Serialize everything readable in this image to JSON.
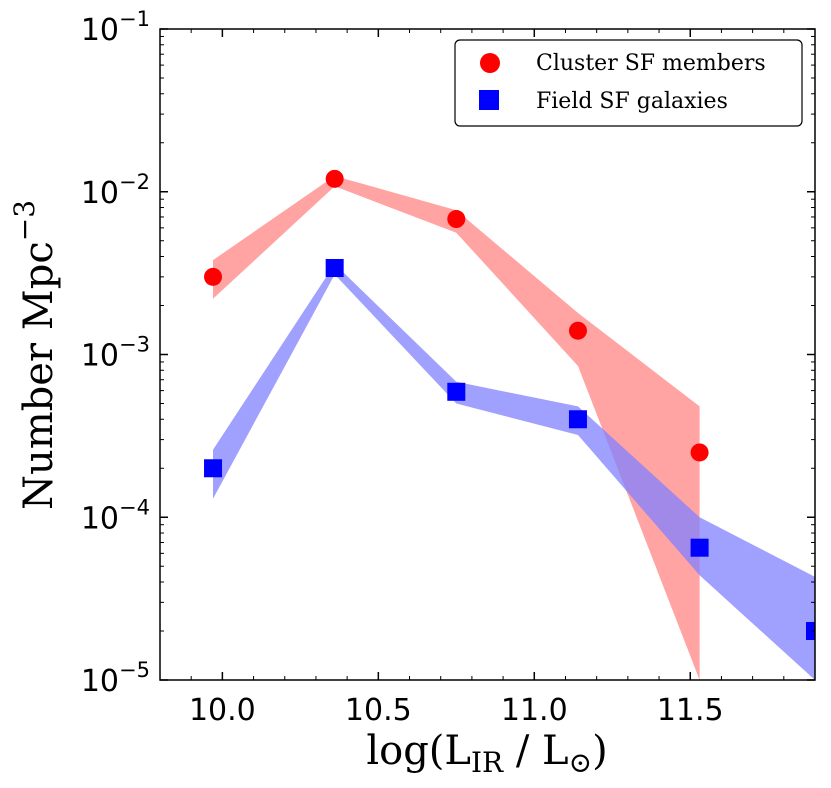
{
  "chart_data": {
    "type": "scatter",
    "title": "",
    "xlabel": "log(L_IR / L_⊙)",
    "ylabel": "Number Mpc^-3",
    "xlim": [
      9.8,
      11.9
    ],
    "ylim": [
      1e-05,
      0.1
    ],
    "yscale": "log",
    "grid": false,
    "legend_position": "top-right",
    "x_ticks": [
      10.0,
      10.5,
      11.0,
      11.5
    ],
    "x_tick_labels": [
      "10.0",
      "10.5",
      "11.0",
      "11.5"
    ],
    "y_ticks": [
      1e-05,
      0.0001,
      0.001,
      0.01,
      0.1
    ],
    "y_tick_labels": [
      {
        "base": "10",
        "exp": "−5"
      },
      {
        "base": "10",
        "exp": "−4"
      },
      {
        "base": "10",
        "exp": "−3"
      },
      {
        "base": "10",
        "exp": "−2"
      },
      {
        "base": "10",
        "exp": "−1"
      }
    ],
    "series": [
      {
        "name": "Cluster SF members",
        "marker": "circle",
        "color": "#ff0000",
        "band_color": "#ff9999",
        "x": [
          9.97,
          10.36,
          10.75,
          11.14,
          11.53
        ],
        "y": [
          0.003,
          0.012,
          0.0068,
          0.0014,
          0.00025
        ],
        "band_x": [
          9.97,
          10.36,
          10.75,
          11.14,
          11.53
        ],
        "band_upper": [
          0.0038,
          0.0125,
          0.0077,
          0.0018,
          0.00048
        ],
        "band_lower": [
          0.0022,
          0.0108,
          0.0056,
          0.00085,
          1e-05
        ]
      },
      {
        "name": "Field SF galaxies",
        "marker": "square",
        "color": "#0000ff",
        "band_color": "#8080ff",
        "x": [
          9.97,
          10.36,
          10.75,
          11.14,
          11.53,
          11.9
        ],
        "y": [
          0.0002,
          0.0034,
          0.00059,
          0.0004,
          6.5e-05,
          2e-05
        ],
        "band_x": [
          9.97,
          10.36,
          10.75,
          11.14,
          11.53,
          11.9
        ],
        "band_upper": [
          0.00026,
          0.0036,
          0.00068,
          0.00048,
          0.0001,
          4.3e-05
        ],
        "band_lower": [
          0.00013,
          0.0031,
          0.0005,
          0.00032,
          4.4e-05,
          1e-05
        ]
      }
    ]
  }
}
